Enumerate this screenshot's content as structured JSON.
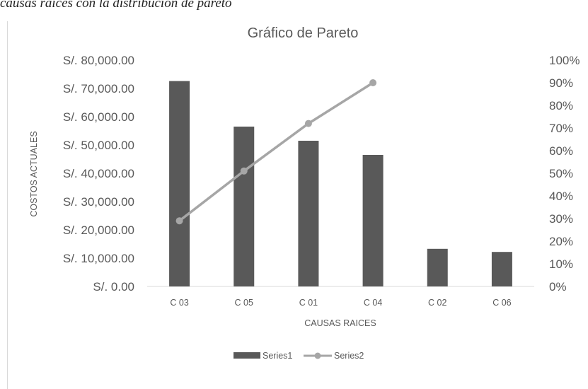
{
  "caption": "causas raíces con la distribución de pareto",
  "chart_data": {
    "type": "bar+line",
    "title": "Gráfico de Pareto",
    "xlabel": "CAUSAS RAICES",
    "ylabel": "COSTOS ACTUALES",
    "categories": [
      "C 03",
      "C 05",
      "C 01",
      "C 04",
      "C 02",
      "C 06"
    ],
    "y_left": {
      "ylim": [
        0,
        80000
      ],
      "ticks": [
        0,
        10000,
        20000,
        30000,
        40000,
        50000,
        60000,
        70000,
        80000
      ],
      "tick_labels": [
        "S/. 0.00",
        "S/. 10,000.00",
        "S/. 20,000.00",
        "S/. 30,000.00",
        "S/. 40,000.00",
        "S/. 50,000.00",
        "S/. 60,000.00",
        "S/. 70,000.00",
        "S/. 80,000.00"
      ]
    },
    "y_right": {
      "ylim": [
        0,
        100
      ],
      "tick_labels": [
        "0%",
        "10%",
        "20%",
        "30%",
        "40%",
        "50%",
        "60%",
        "70%",
        "80%",
        "90%",
        "100%"
      ]
    },
    "series": [
      {
        "name": "Series1",
        "type": "bar",
        "axis": "left",
        "color": "#595959",
        "values": [
          72600,
          56500,
          51500,
          46500,
          13300,
          12200
        ]
      },
      {
        "name": "Series2",
        "type": "line",
        "axis": "right",
        "color": "#a6a6a6",
        "values": [
          29,
          51,
          72,
          90,
          null,
          null
        ]
      }
    ],
    "grid": false,
    "legend": "bottom"
  }
}
